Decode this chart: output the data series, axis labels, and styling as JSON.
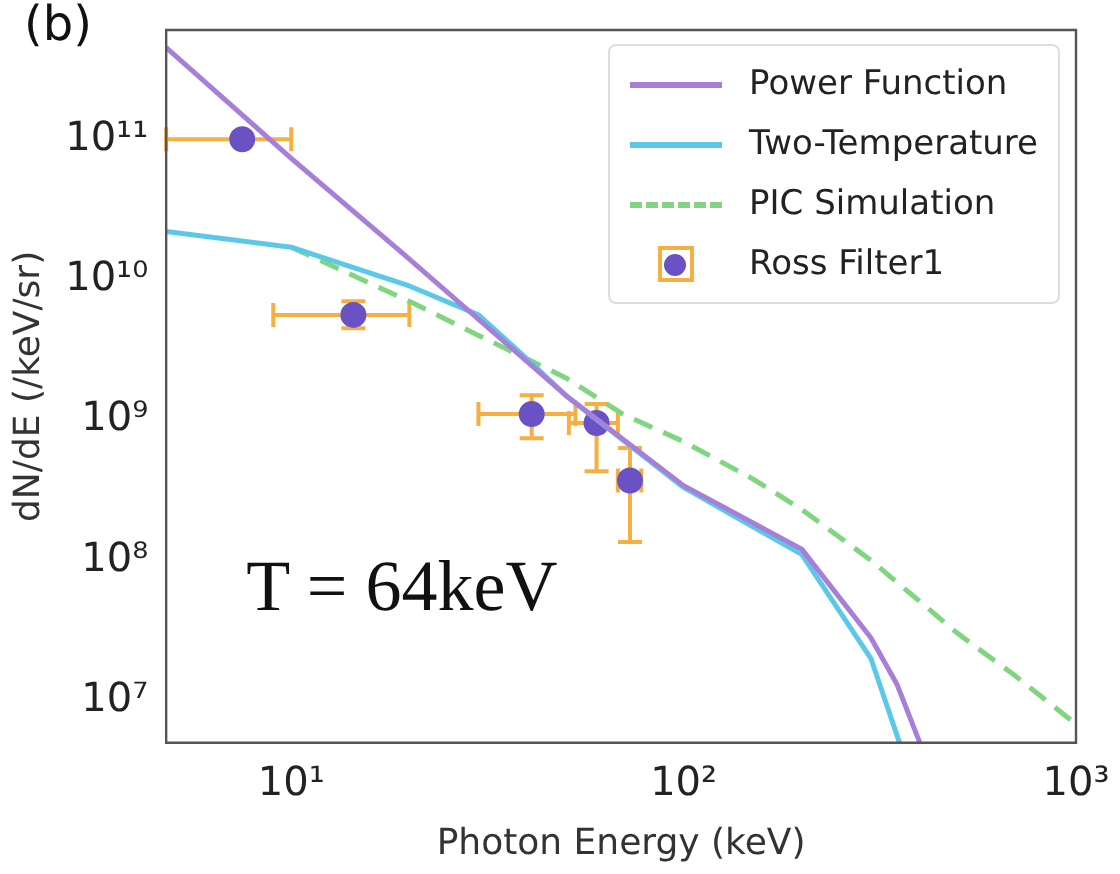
{
  "chart_data": {
    "type": "line",
    "xlabel": "Photon Energy (keV)",
    "ylabel": "dN/dE (/keV/sr)",
    "log": "xy",
    "xlim": [
      4.8,
      1000
    ],
    "ylim": [
      5000000.0,
      600000000000.0
    ],
    "xticks": [
      {
        "value": 10,
        "label": "10¹"
      },
      {
        "value": 100,
        "label": "10²"
      },
      {
        "value": 1000,
        "label": "10³"
      }
    ],
    "yticks": [
      {
        "value": 10000000.0,
        "label": "10⁷"
      },
      {
        "value": 100000000.0,
        "label": "10⁸"
      },
      {
        "value": 1000000000.0,
        "label": "10⁹"
      },
      {
        "value": 10000000000.0,
        "label": "10¹⁰"
      },
      {
        "value": 100000000000.0,
        "label": "10¹¹"
      }
    ],
    "grid": false,
    "legend": "top right",
    "annotations": [
      "(b)",
      "T = 64keV"
    ],
    "series": [
      {
        "name": "Power Function",
        "color": "#a77fd8",
        "line_style": "solid",
        "x": [
          4.8,
          10,
          20,
          50,
          100,
          200,
          300,
          350,
          400
        ],
        "values": [
          450000000000.0,
          73000000000.0,
          14000000000.0,
          1500000000.0,
          340000000.0,
          120000000.0,
          28000000.0,
          13000000.0,
          5000000.0
        ]
      },
      {
        "name": "Two-Temperature",
        "color": "#5bc8e8",
        "line_style": "solid",
        "x": [
          4.8,
          10,
          20,
          30,
          40,
          50,
          100,
          200,
          300,
          355
        ],
        "values": [
          22000000000.0,
          17000000000.0,
          9000000000.0,
          5600000000.0,
          2700000000.0,
          1500000000.0,
          330000000.0,
          110000000.0,
          20000000.0,
          5000000.0
        ]
      },
      {
        "name": "PIC Simulation",
        "color": "#7fd67f",
        "line_style": "dashed",
        "x": [
          10,
          20,
          30,
          50,
          70,
          100,
          150,
          200,
          300,
          500,
          700,
          1000
        ],
        "values": [
          17000000000.0,
          7000000000.0,
          4000000000.0,
          2000000000.0,
          1100000000.0,
          700000000.0,
          380000000.0,
          230000000.0,
          100000000.0,
          30000000.0,
          15000000.0,
          6800000.0
        ]
      },
      {
        "name": "Ross Filter1",
        "type": "scatter",
        "color": "#6a52c4",
        "marker": "circle",
        "x": [
          7.5,
          14.4,
          41,
          60,
          73
        ],
        "values": [
          100000000000.0,
          5600000000.0,
          1100000000.0,
          950000000.0,
          370000000.0
        ],
        "errors": [
          null,
          [
            4500000000.0,
            7000000000.0
          ],
          [
            740000000.0,
            1500000000.0
          ],
          [
            430000000.0,
            1300000000.0
          ],
          [
            135000000.0,
            630000000.0
          ]
        ],
        "xerrors": [
          [
            4.8,
            10
          ],
          [
            9,
            20
          ],
          [
            30,
            53
          ],
          [
            51,
            68
          ],
          [
            68,
            78
          ]
        ]
      }
    ]
  }
}
